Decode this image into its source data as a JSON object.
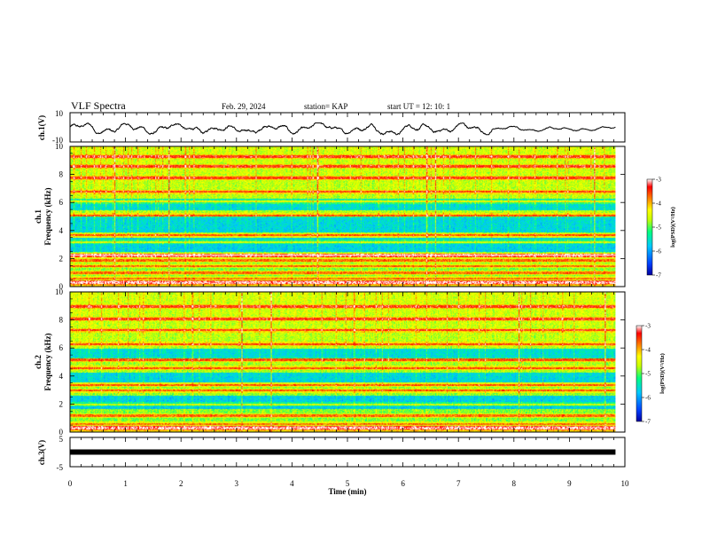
{
  "header": {
    "title": "VLF Spectra",
    "date": "Feb. 29, 2024",
    "station": "station= KAP",
    "start": "start  UT =   12: 10: 1"
  },
  "panels": {
    "ch1": {
      "ylabel": "ch.1(V)",
      "ticks": [
        "10",
        "-10"
      ]
    },
    "spec1": {
      "ylabel_line1": "ch.1",
      "ylabel_line2": "Frequency  (kHz)",
      "ticks": [
        "0",
        "2",
        "4",
        "6",
        "8",
        "10"
      ],
      "colorbar": {
        "label": "log(PSD)(V²/Hz)",
        "ticks": [
          "-3",
          "-4",
          "-5",
          "-6",
          "-7"
        ]
      }
    },
    "spec2": {
      "ylabel_line1": "ch.2",
      "ylabel_line2": "Frequency  (kHz)",
      "ticks": [
        "0",
        "2",
        "4",
        "6",
        "8",
        "10"
      ],
      "colorbar": {
        "label": "log(PSD)(V²/Hz)",
        "ticks": [
          "-3",
          "-4",
          "-5",
          "-6",
          "-7"
        ]
      }
    },
    "ch3": {
      "ylabel": "ch.3(V)",
      "ticks": [
        "5",
        "-5"
      ]
    }
  },
  "xaxis": {
    "label": "Time  (min)",
    "ticks": [
      "0",
      "1",
      "2",
      "3",
      "4",
      "5",
      "6",
      "7",
      "8",
      "9",
      "10"
    ]
  },
  "chart_data": [
    {
      "type": "line",
      "title": "VLF Spectra",
      "ylabel": "ch.1(V)",
      "xlabel": "Time  (min)",
      "xlim": [
        0,
        10
      ],
      "ylim": [
        -10,
        10
      ],
      "data_extent_x": [
        0,
        9.83
      ],
      "approx_range_y": [
        -5,
        3
      ]
    },
    {
      "type": "heatmap",
      "ylabel": "ch.1 Frequency  (kHz)",
      "xlabel": "Time  (min)",
      "xlim": [
        0,
        10
      ],
      "ylim": [
        0,
        10
      ],
      "data_extent_x": [
        0,
        9.83
      ],
      "colorbar_label": "log(PSD)(V²/Hz)",
      "color_range": [
        -7,
        -3
      ],
      "colormap": [
        "#0000a0",
        "#0040ff",
        "#00c8ff",
        "#00ff80",
        "#c8ff00",
        "#ffff00",
        "#ff8000",
        "#ff0000",
        "#ffffff"
      ],
      "low_power_bands_khz": [
        [
          2.5,
          3.5
        ],
        [
          3.9,
          5.0
        ],
        [
          5.5,
          6.3
        ]
      ],
      "narrowband_lines_khz": [
        0.3,
        0.6,
        1.0,
        1.5,
        1.9,
        2.2,
        2.3,
        3.2,
        3.7,
        5.1,
        6.1,
        6.8,
        7.8,
        8.6,
        9.3
      ]
    },
    {
      "type": "heatmap",
      "ylabel": "ch.2 Frequency  (kHz)",
      "xlabel": "Time  (min)",
      "xlim": [
        0,
        10
      ],
      "ylim": [
        0,
        10
      ],
      "data_extent_x": [
        0,
        9.83
      ],
      "colorbar_label": "log(PSD)(V²/Hz)",
      "color_range": [
        -7,
        -3
      ],
      "colormap": [
        "#0000a0",
        "#0040ff",
        "#00c8ff",
        "#00ff80",
        "#c8ff00",
        "#ffff00",
        "#ff8000",
        "#ff0000",
        "#ffffff"
      ],
      "low_power_bands_khz": [
        [
          1.7,
          2.6
        ],
        [
          3.6,
          4.3
        ],
        [
          5.3,
          6.0
        ]
      ],
      "narrowband_lines_khz": [
        0.3,
        0.6,
        1.2,
        2.0,
        3.0,
        3.4,
        4.6,
        5.2,
        6.3,
        7.3,
        8.1,
        9.0
      ]
    },
    {
      "type": "line",
      "ylabel": "ch.3(V)",
      "xlabel": "Time  (min)",
      "xlim": [
        0,
        10
      ],
      "ylim": [
        -5,
        5
      ],
      "data_extent_x": [
        0,
        9.83
      ],
      "approx_value_y": 0
    }
  ]
}
